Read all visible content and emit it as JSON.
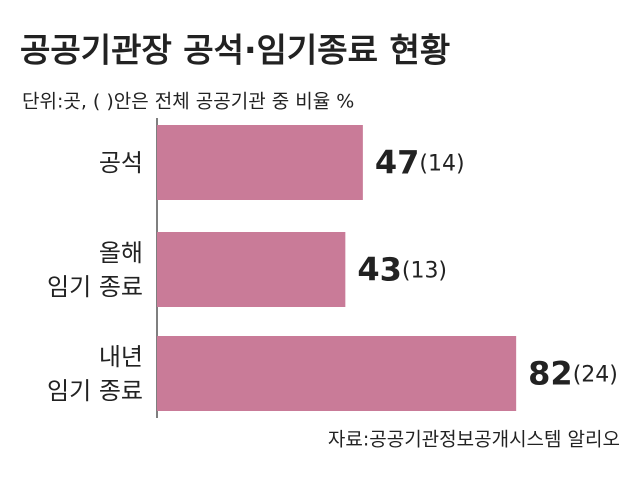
{
  "chart_data": {
    "type": "bar",
    "orientation": "horizontal",
    "title": "공공기관장 공석·임기종료 현황",
    "subtitle": "단위:곳, ( )안은 전체 공공기관 중 비율 %",
    "categories": [
      "공석",
      "올해\n임기 종료",
      "내년\n임기 종료"
    ],
    "values": [
      47,
      43,
      82
    ],
    "share_labels": [
      "(14)",
      "(13)",
      "(24)"
    ],
    "color": "#c97b98",
    "xlim": [
      0,
      100
    ],
    "source": "자료:공공기관정보공개시스템 알리오"
  }
}
